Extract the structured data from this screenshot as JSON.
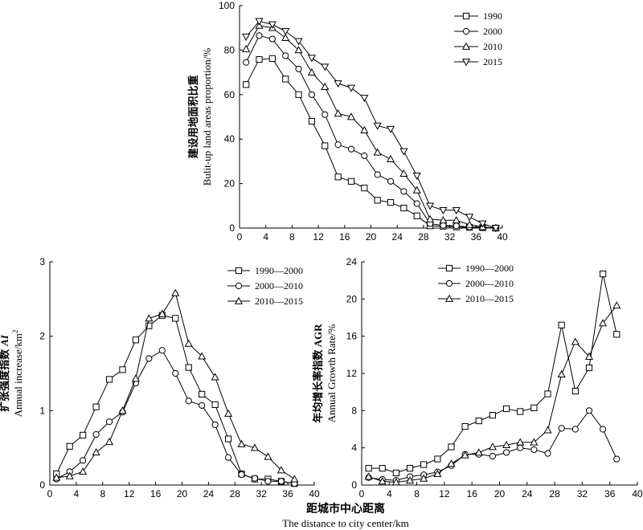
{
  "figure": {
    "x_title_cn": "距城市中心距离",
    "x_title_en": "The distance to city center/km"
  },
  "chart_data": [
    {
      "type": "line",
      "ylabel_cn": "建设用地面积比重",
      "ylabel_en": "Bulit-up land areas proportion/%",
      "xlim": [
        0,
        40
      ],
      "ylim": [
        0,
        100
      ],
      "xticks": [
        0,
        4,
        8,
        12,
        16,
        20,
        24,
        28,
        32,
        36,
        40
      ],
      "yticks": [
        0,
        20,
        40,
        60,
        80,
        100
      ],
      "legend_position": "top-right",
      "series": [
        {
          "name": "1990",
          "marker": "square",
          "x": [
            1,
            3,
            5,
            7,
            9,
            11,
            13,
            15,
            17,
            19,
            21,
            23,
            25,
            27,
            29,
            31,
            33,
            35,
            37,
            39
          ],
          "y": [
            64.5,
            75.8,
            76.2,
            67,
            60,
            48,
            37,
            23,
            21,
            18,
            12.5,
            11.5,
            9,
            5.5,
            1,
            0.8,
            0.5,
            0.3,
            0.2,
            0
          ]
        },
        {
          "name": "2000",
          "marker": "circle",
          "x": [
            1,
            3,
            5,
            7,
            9,
            11,
            13,
            15,
            17,
            19,
            21,
            23,
            25,
            27,
            29,
            31,
            33,
            35,
            37,
            39
          ],
          "y": [
            74.5,
            86.5,
            85,
            77.5,
            71.5,
            60,
            51,
            37.5,
            35.5,
            32.5,
            24,
            21,
            16.5,
            11,
            2,
            1.2,
            1,
            0.5,
            0.3,
            0
          ]
        },
        {
          "name": "2010",
          "marker": "triangle-up",
          "x": [
            1,
            3,
            5,
            7,
            9,
            11,
            13,
            15,
            17,
            19,
            21,
            23,
            25,
            27,
            29,
            31,
            33,
            35,
            37,
            39
          ],
          "y": [
            80.5,
            91,
            90,
            85.5,
            80,
            70,
            63.5,
            51.5,
            50,
            44,
            34,
            31,
            24.5,
            17,
            4,
            3.5,
            3.5,
            1.5,
            0.5,
            0
          ]
        },
        {
          "name": "2015",
          "marker": "triangle-down",
          "x": [
            1,
            3,
            5,
            7,
            9,
            11,
            13,
            15,
            17,
            19,
            21,
            23,
            25,
            27,
            29,
            31,
            33,
            35,
            37,
            39
          ],
          "y": [
            86,
            93,
            91.5,
            88.5,
            84,
            76.5,
            72.5,
            65,
            63,
            58.5,
            46,
            44.5,
            34.5,
            23.5,
            10,
            8,
            8,
            5,
            2,
            0
          ]
        }
      ]
    },
    {
      "type": "line",
      "ylabel_cn": "扩张强度指数",
      "ylabel_cn_italic": "AI",
      "ylabel_en": "Annual increase/km",
      "ylabel_en_sup": "2",
      "xlim": [
        0,
        40
      ],
      "ylim": [
        0,
        3
      ],
      "xticks": [
        0,
        4,
        8,
        12,
        16,
        20,
        24,
        28,
        32,
        36,
        40
      ],
      "yticks": [
        0,
        1,
        2,
        3
      ],
      "legend_position": "top-right",
      "series": [
        {
          "name": "1990—2000",
          "marker": "square",
          "x": [
            1,
            3,
            5,
            7,
            9,
            11,
            13,
            15,
            17,
            19,
            21,
            23,
            25,
            27,
            29,
            31,
            33,
            35,
            37
          ],
          "y": [
            0.15,
            0.52,
            0.67,
            1.05,
            1.42,
            1.55,
            1.95,
            2.14,
            2.28,
            2.24,
            1.58,
            1.22,
            1.08,
            0.62,
            0.15,
            0.08,
            0.08,
            0.05,
            0.02
          ]
        },
        {
          "name": "2000—2010",
          "marker": "circle",
          "x": [
            1,
            3,
            5,
            7,
            9,
            11,
            13,
            15,
            17,
            19,
            21,
            23,
            25,
            27,
            29,
            31,
            33,
            35,
            37
          ],
          "y": [
            0.08,
            0.18,
            0.33,
            0.68,
            0.85,
            0.98,
            1.37,
            1.7,
            1.81,
            1.5,
            1.13,
            1.07,
            0.81,
            0.37,
            0.14,
            0.09,
            0.05,
            0.05,
            0.02
          ]
        },
        {
          "name": "2010—2015",
          "marker": "triangle-up",
          "x": [
            1,
            3,
            5,
            7,
            9,
            11,
            13,
            15,
            17,
            19,
            21,
            23,
            25,
            27,
            29,
            31,
            33,
            35,
            37
          ],
          "y": [
            0.1,
            0.12,
            0.18,
            0.44,
            0.58,
            1.0,
            1.43,
            2.24,
            2.3,
            2.58,
            1.9,
            1.73,
            1.45,
            0.96,
            0.55,
            0.5,
            0.38,
            0.2,
            0.08
          ]
        }
      ]
    },
    {
      "type": "line",
      "ylabel_cn": "年均增长率指数 AGR",
      "ylabel_en": "Annual Growth Rate/%",
      "xlim": [
        0,
        40
      ],
      "ylim": [
        0,
        24
      ],
      "xticks": [
        0,
        4,
        8,
        12,
        16,
        20,
        24,
        28,
        32,
        36,
        40
      ],
      "yticks": [
        0,
        4,
        8,
        12,
        16,
        20,
        24
      ],
      "legend_position": "top-right",
      "series": [
        {
          "name": "1990—2000",
          "marker": "square",
          "x": [
            1,
            3,
            5,
            7,
            9,
            11,
            13,
            15,
            17,
            19,
            21,
            23,
            25,
            27,
            29,
            31,
            33,
            35,
            37
          ],
          "y": [
            1.8,
            1.8,
            1.3,
            1.8,
            2.2,
            2.8,
            4.1,
            6.3,
            6.9,
            7.5,
            8.2,
            7.9,
            8.3,
            9.8,
            17.2,
            10.1,
            12.6,
            22.7,
            16.2
          ]
        },
        {
          "name": "2000—2010",
          "marker": "circle",
          "x": [
            1,
            3,
            5,
            7,
            9,
            11,
            13,
            15,
            17,
            19,
            21,
            23,
            25,
            27,
            29,
            31,
            33,
            35,
            37
          ],
          "y": [
            0.8,
            0.6,
            0.5,
            0.9,
            1.1,
            1.4,
            2.1,
            3.3,
            3.3,
            3.1,
            3.5,
            4.0,
            3.8,
            3.4,
            6.1,
            6.0,
            8.0,
            6.0,
            2.8
          ]
        },
        {
          "name": "2010—2015",
          "marker": "triangle-up",
          "x": [
            1,
            3,
            5,
            7,
            9,
            11,
            13,
            15,
            17,
            19,
            21,
            23,
            25,
            27,
            29,
            31,
            33,
            35,
            37
          ],
          "y": [
            0.9,
            0.4,
            0.3,
            0.5,
            0.7,
            1.2,
            2.3,
            3.2,
            3.5,
            4.1,
            4.3,
            4.6,
            4.6,
            5.9,
            11.9,
            15.4,
            13.8,
            17.4,
            19.3
          ]
        }
      ]
    }
  ]
}
